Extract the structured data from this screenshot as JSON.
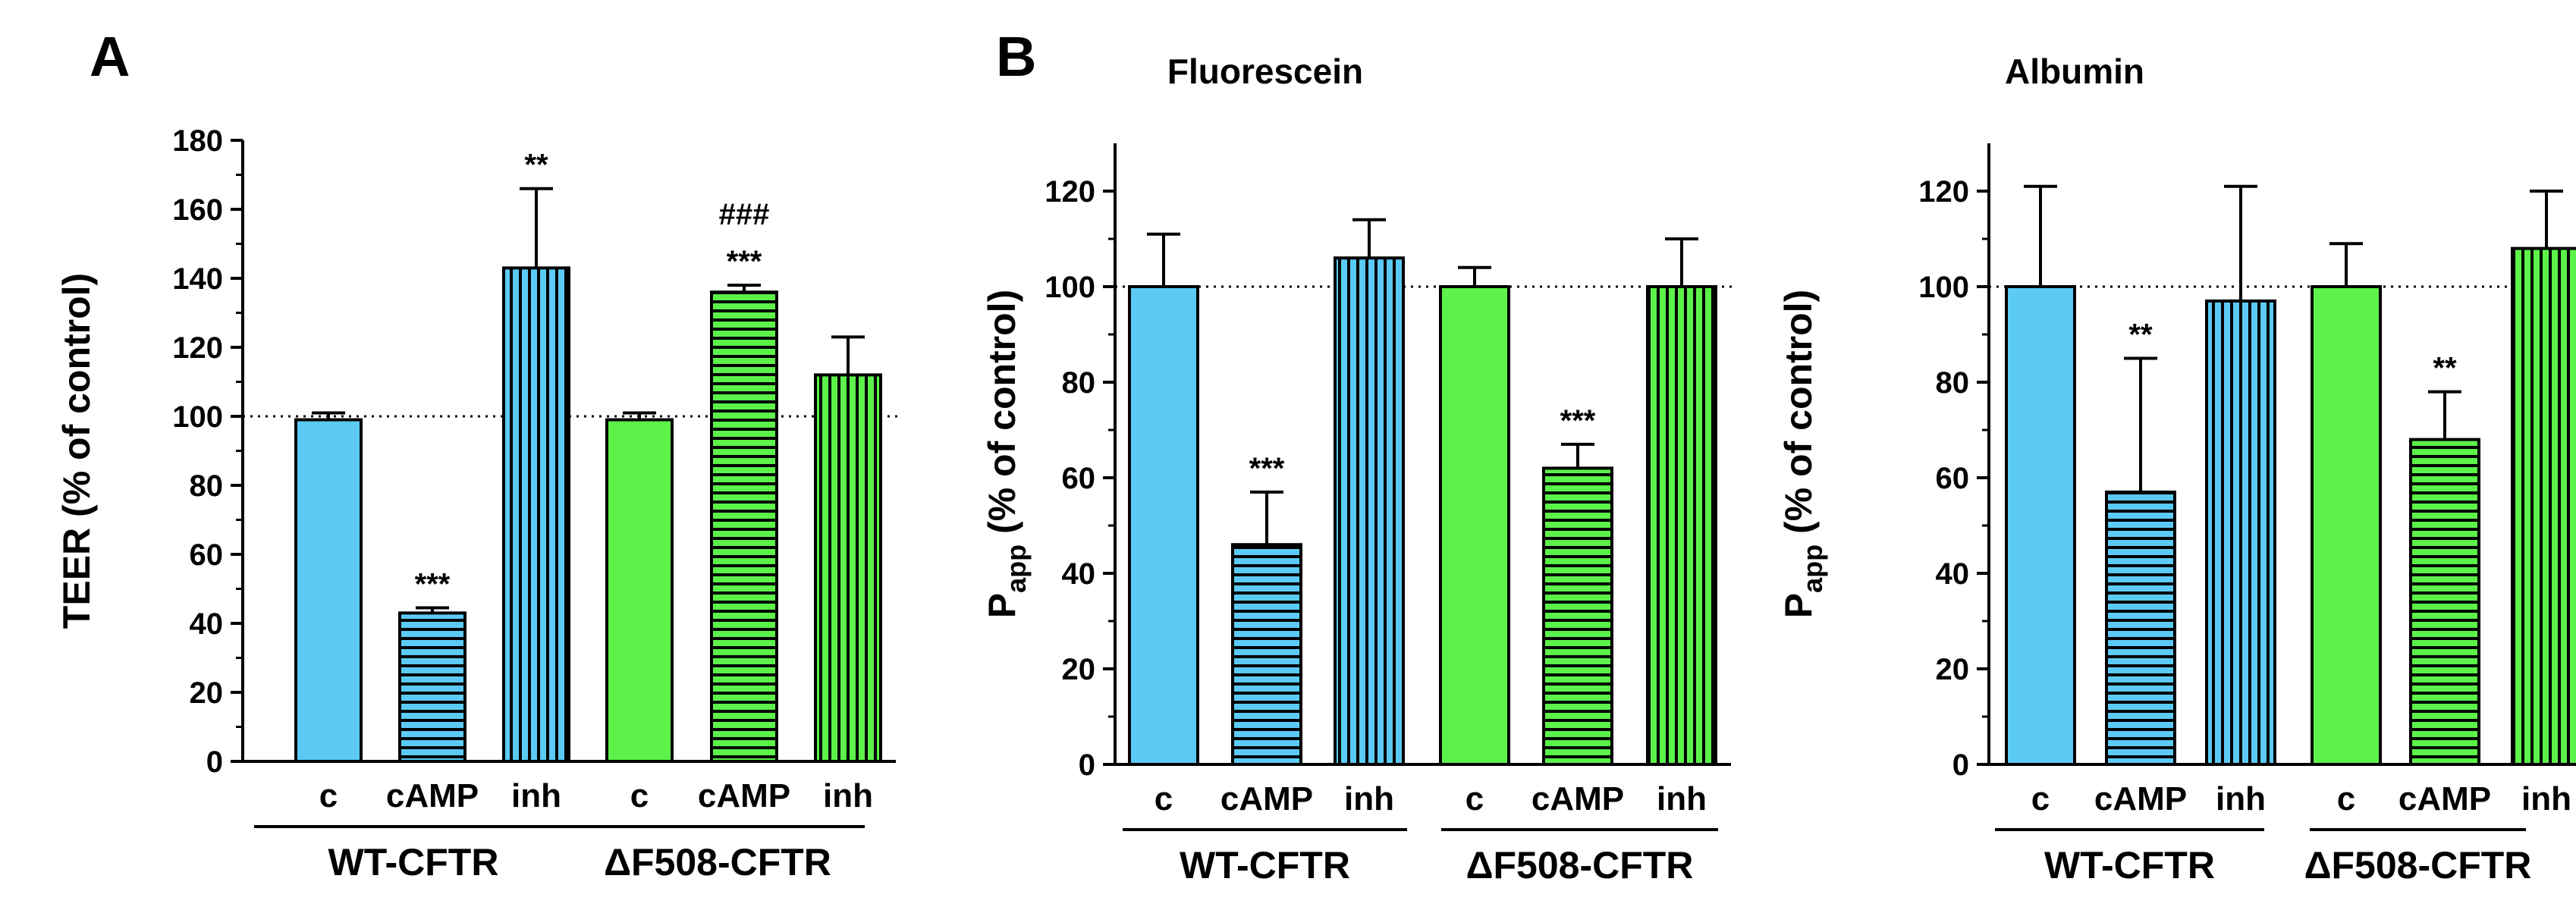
{
  "colors": {
    "wt": "#5BCBF5",
    "df": "#5CF24A",
    "stroke": "#000000"
  },
  "chart_data": [
    {
      "panel_label": "A",
      "type": "bar",
      "title": "",
      "ylabel": "TEER (% of control)",
      "ylabel_sub": "",
      "ylabel_tail": "",
      "ylim": [
        0,
        180
      ],
      "yticks": [
        0,
        20,
        40,
        60,
        80,
        100,
        120,
        140,
        160,
        180
      ],
      "reference_line": 100,
      "groups": [
        {
          "label": "WT-CFTR",
          "color": "wt"
        },
        {
          "label": "ΔF508-CFTR",
          "color": "df"
        }
      ],
      "bars": [
        {
          "label": "c",
          "group": 0,
          "pattern": "solid",
          "value": 99,
          "error": 2,
          "annotations": []
        },
        {
          "label": "cAMP",
          "group": 0,
          "pattern": "horizontal",
          "value": 43,
          "error": 1.5,
          "annotations": [
            "***"
          ]
        },
        {
          "label": "inh",
          "group": 0,
          "pattern": "vertical",
          "value": 143,
          "error": 23,
          "annotations": [
            "**"
          ]
        },
        {
          "label": "c",
          "group": 1,
          "pattern": "solid",
          "value": 99,
          "error": 2,
          "annotations": []
        },
        {
          "label": "cAMP",
          "group": 1,
          "pattern": "horizontal",
          "value": 136,
          "error": 2,
          "annotations": [
            "***",
            "###"
          ]
        },
        {
          "label": "inh",
          "group": 1,
          "pattern": "vertical",
          "value": 112,
          "error": 11,
          "annotations": []
        }
      ]
    },
    {
      "panel_label": "B",
      "type": "bar",
      "title": "Fluorescein",
      "ylabel": "P",
      "ylabel_sub": "app",
      "ylabel_tail": " (% of control)",
      "ylim": [
        0,
        130
      ],
      "yticks": [
        0,
        20,
        40,
        60,
        80,
        100,
        120
      ],
      "reference_line": 100,
      "groups": [
        {
          "label": "WT-CFTR",
          "color": "wt"
        },
        {
          "label": "ΔF508-CFTR",
          "color": "df"
        }
      ],
      "bars": [
        {
          "label": "c",
          "group": 0,
          "pattern": "solid",
          "value": 100,
          "error": 11,
          "annotations": []
        },
        {
          "label": "cAMP",
          "group": 0,
          "pattern": "horizontal",
          "value": 46,
          "error": 11,
          "annotations": [
            "***"
          ]
        },
        {
          "label": "inh",
          "group": 0,
          "pattern": "vertical",
          "value": 106,
          "error": 8,
          "annotations": []
        },
        {
          "label": "c",
          "group": 1,
          "pattern": "solid",
          "value": 100,
          "error": 4,
          "annotations": []
        },
        {
          "label": "cAMP",
          "group": 1,
          "pattern": "horizontal",
          "value": 62,
          "error": 5,
          "annotations": [
            "***"
          ]
        },
        {
          "label": "inh",
          "group": 1,
          "pattern": "vertical",
          "value": 100,
          "error": 10,
          "annotations": []
        }
      ]
    },
    {
      "panel_label": "",
      "type": "bar",
      "title": "Albumin",
      "ylabel": "P",
      "ylabel_sub": "app",
      "ylabel_tail": " (% of control)",
      "ylim": [
        0,
        130
      ],
      "yticks": [
        0,
        20,
        40,
        60,
        80,
        100,
        120
      ],
      "reference_line": 100,
      "groups": [
        {
          "label": "WT-CFTR",
          "color": "wt"
        },
        {
          "label": "ΔF508-CFTR",
          "color": "df"
        }
      ],
      "bars": [
        {
          "label": "c",
          "group": 0,
          "pattern": "solid",
          "value": 100,
          "error": 21,
          "annotations": []
        },
        {
          "label": "cAMP",
          "group": 0,
          "pattern": "horizontal",
          "value": 57,
          "error": 28,
          "annotations": [
            "**"
          ]
        },
        {
          "label": "inh",
          "group": 0,
          "pattern": "vertical",
          "value": 97,
          "error": 24,
          "annotations": []
        },
        {
          "label": "c",
          "group": 1,
          "pattern": "solid",
          "value": 100,
          "error": 9,
          "annotations": []
        },
        {
          "label": "cAMP",
          "group": 1,
          "pattern": "horizontal",
          "value": 68,
          "error": 10,
          "annotations": [
            "**"
          ]
        },
        {
          "label": "inh",
          "group": 1,
          "pattern": "vertical",
          "value": 108,
          "error": 12,
          "annotations": []
        }
      ]
    }
  ]
}
